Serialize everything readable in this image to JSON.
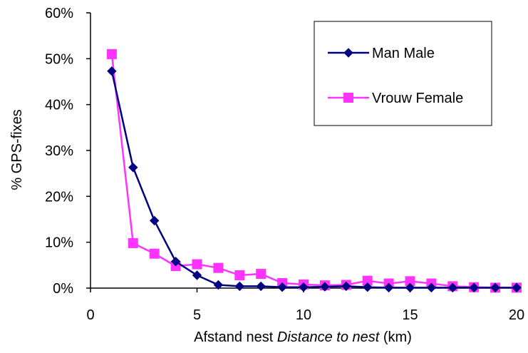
{
  "chart_data": {
    "type": "line",
    "title": "",
    "ylabel": "% GPS-fixes",
    "xlabel_parts": [
      {
        "text": "Afstand nest ",
        "italic": false
      },
      {
        "text": "Distance to nest",
        "italic": true
      },
      {
        "text": " (km)",
        "italic": false
      }
    ],
    "xlim": [
      0,
      20
    ],
    "ylim": [
      0,
      60
    ],
    "x_ticks": [
      0,
      5,
      10,
      15,
      20
    ],
    "y_ticks": [
      0,
      10,
      20,
      30,
      40,
      50,
      60
    ],
    "y_tick_suffix": "%",
    "grid": false,
    "legend_position": "top-right",
    "series": [
      {
        "name": "Man Male",
        "color": "#000080",
        "marker": "diamond",
        "x": [
          1,
          2,
          3,
          4,
          5,
          6,
          7,
          8,
          9,
          10,
          11,
          12,
          13,
          14,
          15,
          16,
          17,
          18,
          19,
          20
        ],
        "y": [
          47.3,
          26.3,
          14.7,
          5.8,
          2.8,
          0.7,
          0.4,
          0.4,
          0.2,
          0.2,
          0.3,
          0.4,
          0.2,
          0.1,
          0.1,
          0.1,
          0.1,
          0.1,
          0.1,
          0.1
        ]
      },
      {
        "name": "Vrouw Female",
        "color": "#ff33ff",
        "marker": "square",
        "x": [
          1,
          2,
          3,
          4,
          5,
          6,
          7,
          8,
          9,
          10,
          11,
          12,
          13,
          14,
          15,
          16,
          17,
          18,
          19,
          20
        ],
        "y": [
          51.0,
          9.8,
          7.5,
          4.8,
          5.2,
          4.4,
          2.8,
          3.1,
          1.1,
          0.8,
          0.6,
          0.7,
          1.6,
          1.0,
          1.5,
          1.0,
          0.4,
          0.2,
          0.1,
          0.1
        ]
      }
    ]
  }
}
